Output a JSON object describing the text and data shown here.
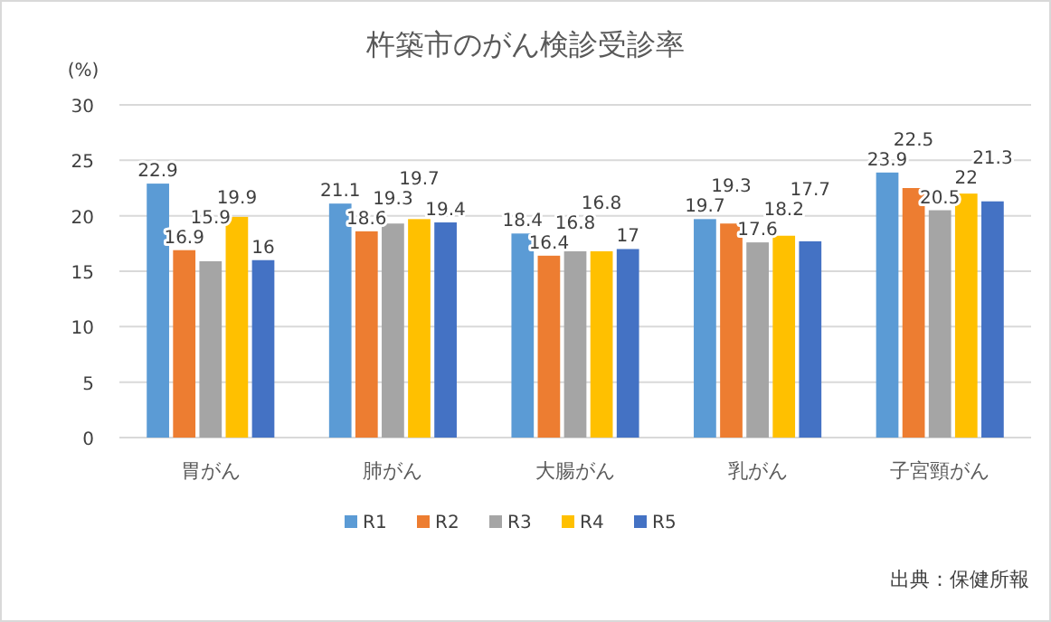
{
  "chart_data": {
    "type": "bar",
    "title": "杵築市のがん検診受診率",
    "ylabel": "(%)",
    "categories": [
      "胃がん",
      "肺がん",
      "大腸がん",
      "乳がん",
      "子宮頸がん"
    ],
    "series": [
      {
        "name": "R1",
        "color": "#5b9bd5",
        "values": [
          22.9,
          21.1,
          18.4,
          19.7,
          23.9
        ]
      },
      {
        "name": "R2",
        "color": "#ed7d31",
        "values": [
          16.9,
          18.6,
          16.4,
          19.3,
          22.5
        ]
      },
      {
        "name": "R3",
        "color": "#a5a5a5",
        "values": [
          15.9,
          19.3,
          16.8,
          17.6,
          20.5
        ]
      },
      {
        "name": "R4",
        "color": "#ffc000",
        "values": [
          19.9,
          19.7,
          16.8,
          18.2,
          22
        ]
      },
      {
        "name": "R5",
        "color": "#4472c4",
        "values": [
          16,
          19.4,
          17,
          17.7,
          21.3
        ]
      }
    ],
    "ylim": [
      0,
      30
    ],
    "yticks": [
      0,
      5,
      10,
      15,
      20,
      25,
      30
    ],
    "grid": "y",
    "legend": "bottom",
    "data_labels": true,
    "annotations": [
      "出典：保健所報"
    ]
  }
}
